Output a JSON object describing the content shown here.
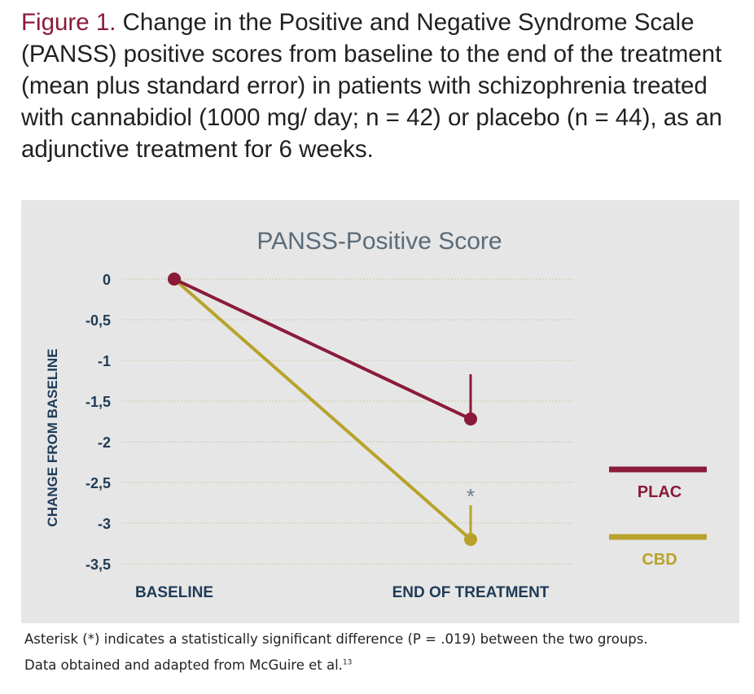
{
  "caption": {
    "label": "Figure 1.",
    "text": "Change in the Positive and Negative Syndrome Scale (PANSS) positive scores from baseline to the end of the treatment (mean plus standard error) in patients with schizophrenia treated with cannabidiol (1000 mg/ day; n = 42) or placebo (n = 44), as an adjunctive treatment for 6 weeks."
  },
  "footnotes": {
    "line1": "Asterisk (*) indicates a statistically significant difference (P = .019) between the two groups.",
    "line2": "Data obtained and adapted from McGuire et al.",
    "line2_ref": "13"
  },
  "colors": {
    "plac": "#8b1a3a",
    "cbd": "#b8a22a",
    "panel": "#e6e6e6",
    "axis_text": "#1f3b57",
    "title_text": "#5b6b78",
    "grid": "#c9c9a8"
  },
  "chart_data": {
    "type": "line",
    "title": "PANSS-Positive Score",
    "xlabel": "",
    "ylabel": "CHANGE FROM BASELINE",
    "categories": [
      "BASELINE",
      "END OF TREATMENT"
    ],
    "ylim": [
      -3.5,
      0
    ],
    "yticks": [
      0,
      -0.5,
      -1,
      -1.5,
      -2,
      -2.5,
      -3,
      -3.5
    ],
    "ytick_labels": [
      "0",
      "-0,5",
      "-1",
      "-1,5",
      "-2",
      "-2,5",
      "-3",
      "-3,5"
    ],
    "grid": true,
    "legend_position": "right",
    "series": [
      {
        "name": "PLAC",
        "values": [
          0,
          -1.72
        ],
        "error_upper": [
          0,
          0.55
        ]
      },
      {
        "name": "CBD",
        "values": [
          0,
          -3.2
        ],
        "error_upper": [
          0,
          0.42
        ]
      }
    ],
    "annotations": [
      {
        "text": "*",
        "series": "CBD",
        "category": "END OF TREATMENT"
      }
    ]
  }
}
